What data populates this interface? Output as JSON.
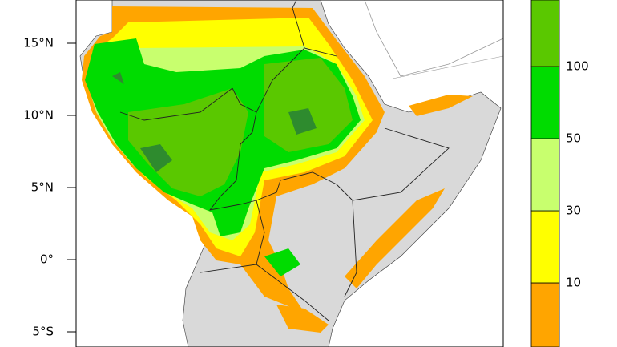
{
  "map": {
    "lat_ticks": [
      {
        "value": 15,
        "label": "15°N"
      },
      {
        "value": 10,
        "label": "10°N"
      },
      {
        "value": 5,
        "label": "5°N"
      },
      {
        "value": 0,
        "label": "0°"
      },
      {
        "value": -5,
        "label": "5°S"
      }
    ],
    "colorbar": {
      "levels": [
        10,
        30,
        50,
        100
      ],
      "colors": [
        "#ffa500",
        "#ffff00",
        "#c8ff6e",
        "#00dc00",
        "#5ac800"
      ]
    }
  }
}
